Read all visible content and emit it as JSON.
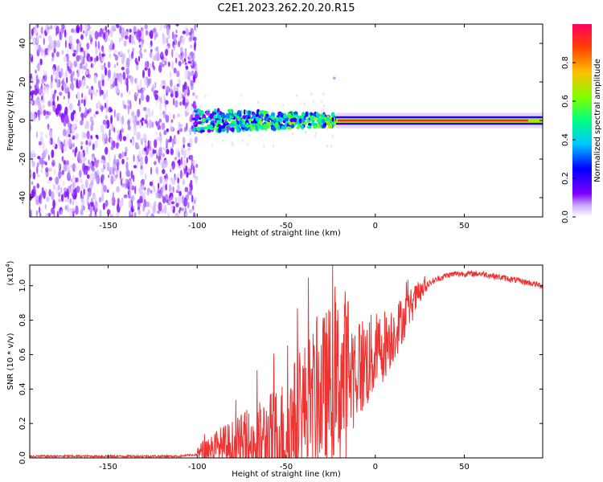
{
  "chart_data": [
    {
      "type": "heatmap",
      "title": "C2E1.2023.262.20.20.R15",
      "xlabel": "Height of straight line (km)",
      "ylabel": "Frequency (Hz)",
      "xlim": [
        -194,
        94
      ],
      "ylim": [
        -50,
        50
      ],
      "xticks": [
        -150,
        -100,
        -50,
        0,
        50
      ],
      "yticks": [
        -40,
        -20,
        0,
        20,
        40
      ],
      "colorbar": {
        "label": "Normalized spectral amplitude",
        "range": [
          0,
          1
        ],
        "ticks": [
          "0.0",
          "0.2",
          "0.4",
          "0.6",
          "0.8"
        ],
        "colors": [
          "#ffffff",
          "#c8a8ff",
          "#8000ff",
          "#0000ff",
          "#00c8ff",
          "#00ff80",
          "#80ff00",
          "#ffc000",
          "#ff4000",
          "#ff0060"
        ]
      },
      "regions": [
        {
          "x_range": [
            -194,
            -102
          ],
          "description_level": 0.15,
          "freq_spread": 50
        },
        {
          "x_range": [
            -102,
            -22
          ],
          "description_level": 0.45,
          "freq_spread": 6
        },
        {
          "x_range": [
            -22,
            94
          ],
          "description_level": 1.0,
          "freq_spread": 1
        }
      ],
      "annotations": [
        {
          "x": -23,
          "y": 22
        }
      ]
    },
    {
      "type": "line",
      "xlabel": "Height of straight line (km)",
      "ylabel": "SNR (10 * v/v)",
      "yscale_label": "(x10",
      "yscale_exp": "4",
      "yscale_close": ")",
      "xlim": [
        -194,
        94
      ],
      "ylim": [
        0,
        1.12
      ],
      "xticks": [
        -150,
        -100,
        -50,
        0,
        50
      ],
      "yticks": [
        0.0,
        0.2,
        0.4,
        0.6,
        0.8,
        1.0
      ],
      "series": [
        {
          "color": "#ee3333",
          "x": [
            -194,
            -150,
            -110,
            -100,
            -95,
            -90,
            -80,
            -70,
            -60,
            -50,
            -45,
            -40,
            -35,
            -30,
            -25,
            -20,
            -15,
            -10,
            -5,
            0,
            5,
            10,
            15,
            20,
            25,
            30,
            35,
            40,
            45,
            50,
            55,
            60,
            65,
            70,
            75,
            80,
            85,
            94
          ],
          "y": [
            0.01,
            0.01,
            0.01,
            0.02,
            0.05,
            0.06,
            0.06,
            0.07,
            0.1,
            0.14,
            0.22,
            0.28,
            0.33,
            0.38,
            0.42,
            0.45,
            0.48,
            0.52,
            0.55,
            0.6,
            0.66,
            0.72,
            0.8,
            0.88,
            0.96,
            1.01,
            1.04,
            1.06,
            1.07,
            1.07,
            1.07,
            1.07,
            1.06,
            1.05,
            1.04,
            1.03,
            1.02,
            1.0
          ]
        }
      ]
    }
  ]
}
